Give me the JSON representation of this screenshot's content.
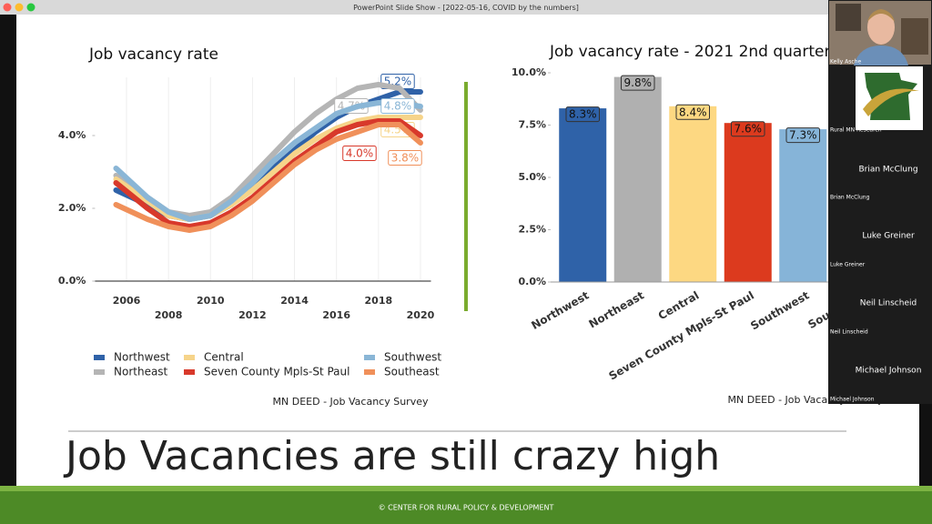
{
  "window": {
    "title": "PowerPoint Slide Show - [2022-05-16, COVID by the numbers]"
  },
  "participants": [
    {
      "name": "Kelly Asche"
    },
    {
      "name": "Rural MN Research"
    },
    {
      "name": "Brian McClung"
    },
    {
      "name": "Luke Greiner"
    },
    {
      "name": "Neil Linscheid"
    },
    {
      "name": "Michael Johnson"
    }
  ],
  "slide": {
    "headline": "Job Vacancies are still crazy high",
    "footer": "© CENTER FOR RURAL POLICY & DEVELOPMENT"
  },
  "chart_data": [
    {
      "type": "line",
      "title": "Job vacancy rate",
      "source": "MN DEED - Job Vacancy Survey",
      "x": [
        2005.5,
        2007,
        2008,
        2009,
        2010,
        2011,
        2012,
        2013,
        2014,
        2015,
        2016,
        2017,
        2018,
        2019,
        2020
      ],
      "xlim": [
        2004.5,
        2020.5
      ],
      "xticks": [
        2006,
        2008,
        2010,
        2012,
        2014,
        2016,
        2018,
        2020
      ],
      "ylim": [
        0,
        5.6
      ],
      "yticks": [
        {
          "value": 0,
          "label": "0.0%"
        },
        {
          "value": 2,
          "label": "2.0%"
        },
        {
          "value": 4,
          "label": "4.0%"
        }
      ],
      "legend": "bottom",
      "series": [
        {
          "name": "Northwest",
          "color": "#2f62a8",
          "values": [
            2.5,
            2.1,
            1.8,
            1.7,
            1.8,
            2.1,
            2.6,
            3.1,
            3.6,
            4.1,
            4.5,
            4.8,
            5.0,
            5.2,
            5.2
          ],
          "value_labels": [
            null,
            null,
            null,
            null,
            null,
            null,
            null,
            null,
            null,
            null,
            null,
            null,
            null,
            null,
            "5.2%"
          ]
        },
        {
          "name": "Northeast",
          "color": "#b5b5b5",
          "values": [
            2.9,
            2.3,
            1.9,
            1.8,
            1.9,
            2.3,
            2.9,
            3.5,
            4.1,
            4.6,
            5.0,
            5.3,
            5.4,
            5.3,
            4.7
          ],
          "value_labels": [
            null,
            null,
            null,
            null,
            null,
            null,
            null,
            null,
            null,
            null,
            null,
            null,
            null,
            null,
            "4.7%"
          ]
        },
        {
          "name": "Central",
          "color": "#f6d48a",
          "values": [
            2.8,
            2.2,
            1.8,
            1.7,
            1.8,
            2.1,
            2.5,
            3.0,
            3.5,
            3.9,
            4.2,
            4.4,
            4.5,
            4.5,
            4.5
          ],
          "value_labels": [
            null,
            null,
            null,
            null,
            null,
            null,
            null,
            null,
            null,
            null,
            null,
            null,
            null,
            null,
            "4.5%"
          ]
        },
        {
          "name": "Seven County Mpls-St Paul",
          "color": "#d8392b",
          "values": [
            2.7,
            2.0,
            1.6,
            1.5,
            1.6,
            1.9,
            2.3,
            2.8,
            3.3,
            3.7,
            4.1,
            4.3,
            4.4,
            4.4,
            4.0
          ],
          "value_labels": [
            null,
            null,
            null,
            null,
            null,
            null,
            null,
            null,
            null,
            null,
            null,
            null,
            null,
            null,
            "4.0%"
          ]
        },
        {
          "name": "Southwest",
          "color": "#8ab6d6",
          "values": [
            3.1,
            2.3,
            1.9,
            1.7,
            1.8,
            2.2,
            2.7,
            3.3,
            3.8,
            4.2,
            4.6,
            4.8,
            4.9,
            4.9,
            4.8
          ],
          "value_labels": [
            null,
            null,
            null,
            null,
            null,
            null,
            null,
            null,
            null,
            null,
            null,
            null,
            null,
            null,
            "4.8%"
          ]
        },
        {
          "name": "Southeast",
          "color": "#f0905a",
          "values": [
            2.1,
            1.7,
            1.5,
            1.4,
            1.5,
            1.8,
            2.2,
            2.7,
            3.2,
            3.6,
            3.9,
            4.1,
            4.3,
            4.3,
            3.8
          ],
          "value_labels": [
            null,
            null,
            null,
            null,
            null,
            null,
            null,
            null,
            null,
            null,
            null,
            null,
            null,
            null,
            "3.8%"
          ]
        }
      ]
    },
    {
      "type": "bar",
      "title": "Job vacancy rate - 2021 2nd quarter",
      "source": "MN DEED - Job Vacancy Survey",
      "categories": [
        "Northwest",
        "Northeast",
        "Central",
        "Seven County Mpls-St Paul",
        "Southwest",
        "Southeast"
      ],
      "values": [
        8.3,
        9.8,
        8.4,
        7.6,
        7.3,
        null
      ],
      "value_labels": [
        "8.3%",
        "9.8%",
        "8.4%",
        "7.6%",
        "7.3%",
        null
      ],
      "colors": [
        "#2f62a8",
        "#b0b0b0",
        "#fdd882",
        "#dc3a1e",
        "#86b4d8",
        "#f0905a"
      ],
      "ylim": [
        0,
        10.5
      ],
      "yticks": [
        {
          "value": 0,
          "label": "0.0%"
        },
        {
          "value": 2.5,
          "label": "2.5%"
        },
        {
          "value": 5,
          "label": "5.0%"
        },
        {
          "value": 7.5,
          "label": "7.5%"
        },
        {
          "value": 10,
          "label": "10.0%"
        }
      ]
    }
  ]
}
